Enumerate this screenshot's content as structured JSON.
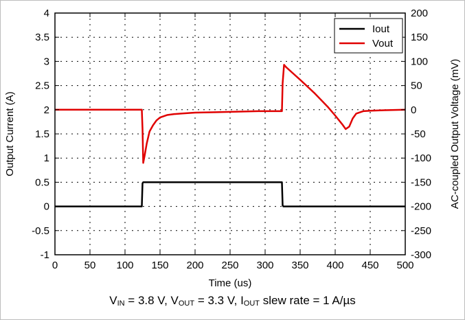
{
  "chart_data": {
    "type": "line",
    "xlabel": "Time (us)",
    "ylabel_left": "Output Current (A)",
    "ylabel_right": "AC-coupled Output Voltage (mV)",
    "xlim": [
      0,
      500
    ],
    "ylim_left": [
      -1,
      4
    ],
    "ylim_right": [
      -300,
      200
    ],
    "x_ticks": [
      0,
      50,
      100,
      150,
      200,
      250,
      300,
      350,
      400,
      450,
      500
    ],
    "y_left_ticks": [
      -1,
      -0.5,
      0,
      0.5,
      1,
      1.5,
      2,
      2.5,
      3,
      3.5,
      4
    ],
    "y_right_ticks": [
      -300,
      -250,
      -200,
      -150,
      -100,
      -50,
      0,
      50,
      100,
      150,
      200
    ],
    "grid": true,
    "legend_position": "top-right",
    "series": [
      {
        "name": "Iout",
        "axis": "left",
        "color": "#000000",
        "x": [
          0,
          124,
          125,
          126,
          324,
          325,
          326,
          500
        ],
        "y": [
          0,
          0,
          0.48,
          0.5,
          0.5,
          0.02,
          0,
          0
        ]
      },
      {
        "name": "Vout",
        "axis": "right",
        "color": "#e00000",
        "x": [
          0,
          124,
          125,
          126,
          128,
          131,
          135,
          140,
          145,
          150,
          160,
          170,
          180,
          200,
          230,
          260,
          290,
          324,
          325,
          327,
          330,
          340,
          350,
          370,
          390,
          400,
          410,
          415,
          420,
          425,
          430,
          440,
          450,
          470,
          500
        ],
        "y": [
          0,
          0,
          -40,
          -110,
          -95,
          -70,
          -45,
          -32,
          -22,
          -16,
          -11,
          -9,
          -8,
          -6,
          -5,
          -4,
          -3,
          -3,
          55,
          93,
          88,
          75,
          62,
          35,
          5,
          -12,
          -30,
          -40,
          -35,
          -18,
          -8,
          -3,
          -2,
          -1,
          0
        ]
      }
    ]
  },
  "caption": {
    "v_in": "V",
    "v_in_sub": "IN",
    "v_in_val": " = 3.8 V, V",
    "v_out_sub": "OUT",
    "v_out_val": " = 3.3 V, I",
    "i_out_sub": "OUT",
    "i_out_val": " slew rate = 1 A/µs"
  }
}
